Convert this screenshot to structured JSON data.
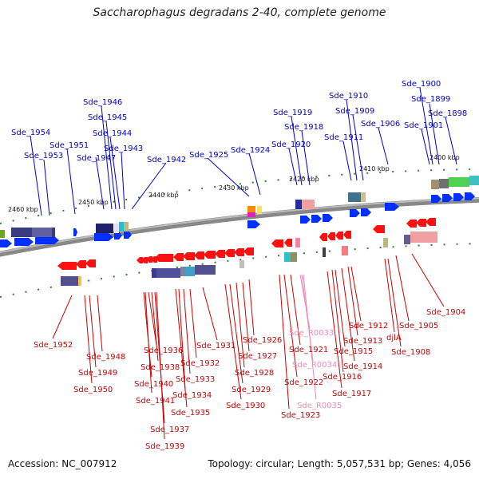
{
  "title": "Saccharophagus degradans 2-40, complete genome",
  "footer": {
    "accession": "Accession: NC_007912",
    "stats": "Topology: circular; Length: 5,057,531 bp; Genes: 4,056"
  },
  "colors": {
    "forward_label": "#0000cc",
    "reverse_label": "#cc0000",
    "rna_label": "#ee88bb",
    "forward_gene": "#0030ff",
    "reverse_gene": "#ff1010",
    "backbone": "#888888",
    "tick": "#228822"
  },
  "kbp_labels": [
    "2460 kbp",
    "2450 kbp",
    "2440 kbp",
    "2430 kbp",
    "2420 kbp",
    "2410 kbp",
    "2400 kbp"
  ],
  "forward_genes": [
    "Sde_1954",
    "Sde_1953",
    "Sde_1951",
    "Sde_1947",
    "Sde_1946",
    "Sde_1945",
    "Sde_1944",
    "Sde_1943",
    "Sde_1942",
    "Sde_1925",
    "Sde_1924",
    "Sde_1920",
    "Sde_1919",
    "Sde_1918",
    "Sde_1911",
    "Sde_1910",
    "Sde_1909",
    "Sde_1906",
    "Sde_1901",
    "Sde_1900",
    "Sde_1899",
    "Sde_1898"
  ],
  "reverse_genes": [
    "Sde_1952",
    "Sde_1948",
    "Sde_1949",
    "Sde_1950",
    "Sde_1936",
    "Sde_1938",
    "Sde_1940",
    "Sde_1941",
    "Sde_1937",
    "Sde_1939",
    "Sde_1935",
    "Sde_1934",
    "Sde_1933",
    "Sde_1932",
    "Sde_1931",
    "Sde_1930",
    "Sde_1929",
    "Sde_1928",
    "Sde_1927",
    "Sde_1926",
    "Sde_1921",
    "Sde_1922",
    "Sde_1923",
    "Sde_1917",
    "Sde_1916",
    "Sde_1915",
    "Sde_1914",
    "Sde_1913",
    "Sde_1912",
    "djlA",
    "Sde_1908",
    "Sde_1905",
    "Sde_1904"
  ],
  "rna_genes": [
    "Sde_R0033",
    "Sde_R0034",
    "Sde_R0035"
  ]
}
